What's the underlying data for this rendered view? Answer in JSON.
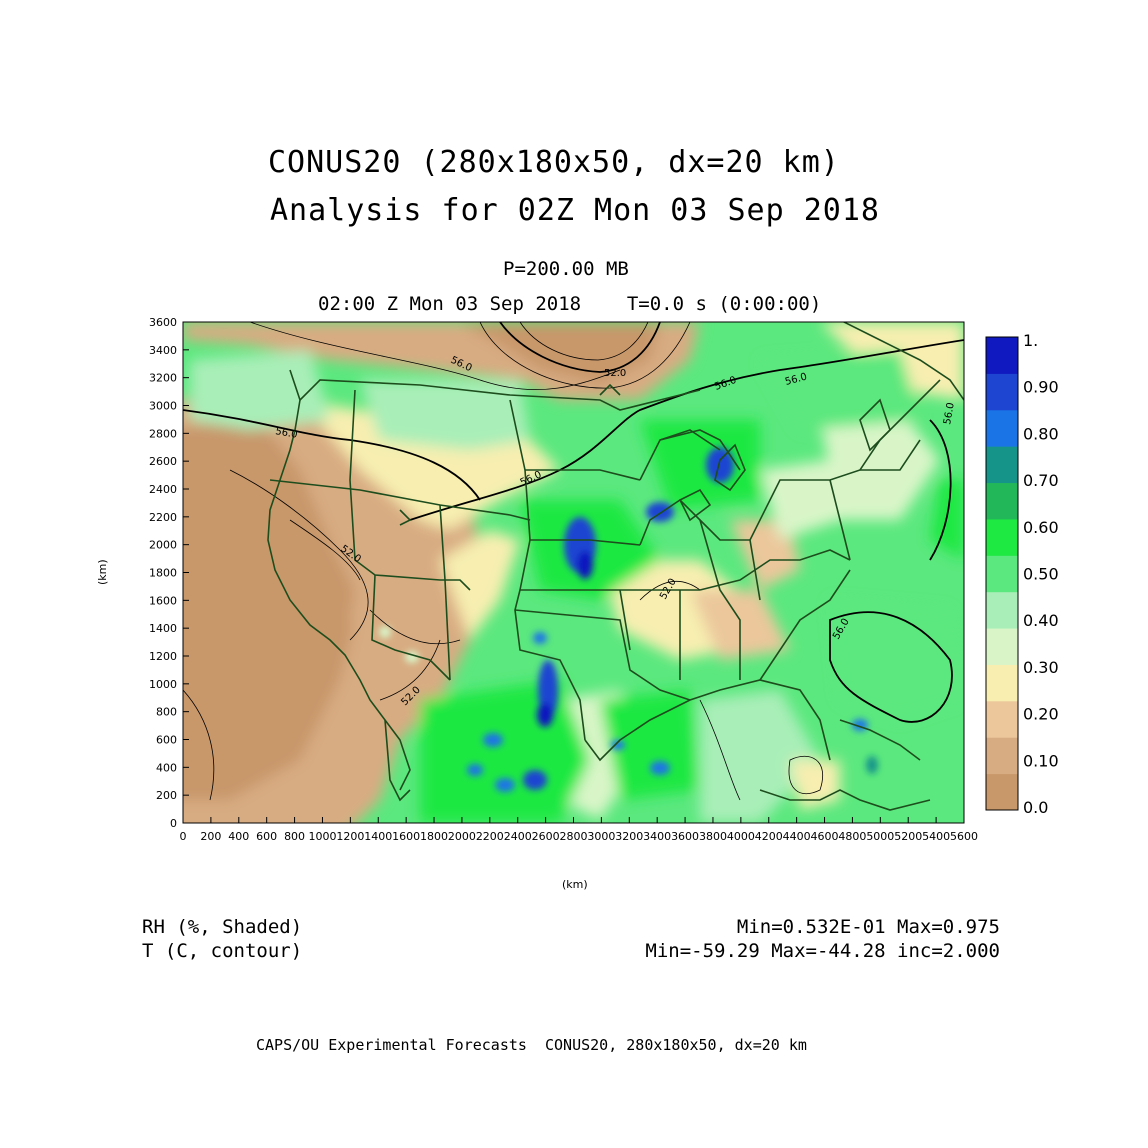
{
  "header": {
    "title_line1": "CONUS20 (280x180x50, dx=20 km)",
    "title_line2": "Analysis for 02Z Mon 03 Sep 2018",
    "level": "P=200.00 MB",
    "valid_time": "02:00 Z Mon 03 Sep 2018    T=0.0 s (0:00:00)"
  },
  "axes": {
    "x_label": "(km)",
    "y_label": "(km)",
    "x_ticks": [
      "0",
      "200",
      "400",
      "600",
      "800",
      "1000",
      "1200",
      "1400",
      "1600",
      "1800",
      "2000",
      "2200",
      "2400",
      "2600",
      "2800",
      "3000",
      "3200",
      "3400",
      "3600",
      "3800",
      "4000",
      "4200",
      "4400",
      "4600",
      "4800",
      "5000",
      "5200",
      "5400",
      "5600"
    ],
    "y_ticks": [
      "0",
      "200",
      "400",
      "600",
      "800",
      "1000",
      "1200",
      "1400",
      "1600",
      "1800",
      "2000",
      "2200",
      "2400",
      "2600",
      "2800",
      "3000",
      "3200",
      "3400",
      "3600"
    ],
    "x_range": [
      0,
      5600
    ],
    "y_range": [
      0,
      3600
    ]
  },
  "colorbar": {
    "labels": [
      "0.0",
      "0.10",
      "0.20",
      "0.30",
      "0.40",
      "0.50",
      "0.60",
      "0.70",
      "0.80",
      "0.90",
      "1."
    ],
    "colors": [
      "#c8976a",
      "#d8ac82",
      "#ebc79b",
      "#f7eeb0",
      "#d9f5c8",
      "#a9eeb8",
      "#5be87e",
      "#1ee842",
      "#22b85a",
      "#15958a",
      "#1a74e6",
      "#1e44d2",
      "#1018bf"
    ]
  },
  "contour_labels": [
    "56.0",
    "52.0",
    "56.0",
    "56.0",
    "56.0",
    "56.0",
    "52.0",
    "56.0",
    "56.0",
    "52.0",
    "52.0"
  ],
  "legend": {
    "field1_name": "RH (%, Shaded)",
    "field2_name": "T (C, contour)",
    "field1_stats": "Min=0.532E-01 Max=0.975",
    "field2_stats": "Min=-59.29 Max=-44.28 inc=2.000"
  },
  "footer": "CAPS/OU Experimental Forecasts  CONUS20, 280x180x50, dx=20 km"
}
